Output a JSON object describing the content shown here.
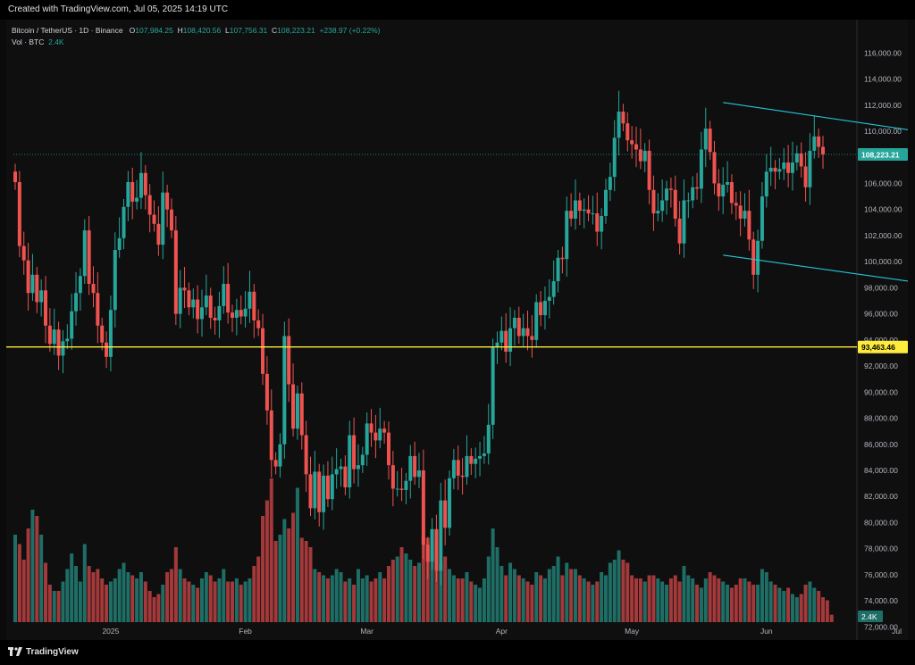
{
  "header": {
    "created_text": "Created with TradingView.com, Jul 05, 2025 14:19 UTC"
  },
  "legend": {
    "symbol": "Bitcoin / TetherUS · 1D · Binance",
    "open_key": "O",
    "open": "107,984.25",
    "high_key": "H",
    "high": "108,420.56",
    "low_key": "L",
    "low": "107,756.31",
    "close_key": "C",
    "close": "108,223.21",
    "change": "+238.97 (+0.22%)",
    "volume_label": "Vol · BTC",
    "volume_value": "2.4K"
  },
  "footer": {
    "brand": "TradingView"
  },
  "colors": {
    "up": "#26a69a",
    "down": "#ef5350",
    "vol_up": "#1f6e66",
    "vol_down": "#a3393a",
    "support": "#ffeb3b",
    "channel": "#26c6da",
    "price_line": "#26a69a"
  },
  "chart_data": {
    "type": "candlestick",
    "symbol": "BTCUSDT",
    "interval": "1D",
    "ylim": [
      71000,
      116500
    ],
    "y_ticks": [
      "116,000.00",
      "114,000.00",
      "112,000.00",
      "110,000.00",
      "108,000.00",
      "106,000.00",
      "104,000.00",
      "102,000.00",
      "100,000.00",
      "98,000.00",
      "96,000.00",
      "94,000.00",
      "92,000.00",
      "90,000.00",
      "88,000.00",
      "86,000.00",
      "84,000.00",
      "82,000.00",
      "80,000.00",
      "78,000.00",
      "76,000.00",
      "74,000.00",
      "72,000.00"
    ],
    "y_tick_values": [
      116000,
      114000,
      112000,
      110000,
      108000,
      106000,
      104000,
      102000,
      100000,
      98000,
      96000,
      94000,
      92000,
      90000,
      88000,
      86000,
      84000,
      82000,
      80000,
      78000,
      76000,
      74000,
      72000
    ],
    "x_ticks": [
      {
        "label": "2025",
        "day": "2025-01-01"
      },
      {
        "label": "Feb",
        "day": "2025-02-01"
      },
      {
        "label": "Mar",
        "day": "2025-03-01"
      },
      {
        "label": "Apr",
        "day": "2025-04-01"
      },
      {
        "label": "May",
        "day": "2025-05-01"
      },
      {
        "label": "Jun",
        "day": "2025-06-01"
      },
      {
        "label": "Jul",
        "day": "2025-07-01"
      }
    ],
    "first_day": "2024-12-10",
    "closes": [
      106100,
      101200,
      100100,
      97600,
      99000,
      96900,
      97800,
      95100,
      93700,
      94800,
      92800,
      93900,
      94100,
      96200,
      97600,
      98900,
      102400,
      98300,
      97600,
      95100,
      93800,
      92700,
      96300,
      100900,
      101800,
      104200,
      106100,
      104600,
      104900,
      106800,
      105100,
      103600,
      102900,
      101300,
      105300,
      104000,
      102400,
      96000,
      98000,
      97800,
      96500,
      97100,
      95600,
      96500,
      97400,
      95700,
      95500,
      96600,
      98300,
      96100,
      95700,
      96300,
      95800,
      96400,
      97700,
      95500,
      94900,
      91400,
      88600,
      84800,
      84300,
      86000,
      94300,
      90600,
      87200,
      89900,
      86700,
      83700,
      81100,
      83900,
      80800,
      83600,
      81800,
      83700,
      84100,
      84300,
      82700,
      86700,
      84100,
      84400,
      85200,
      87600,
      86900,
      86300,
      87200,
      86900,
      84400,
      82600,
      82600,
      82500,
      83200,
      85100,
      83500,
      84000,
      78300,
      77000,
      79500,
      76300,
      81700,
      79600,
      83400,
      84800,
      83600,
      83500,
      85100,
      84500,
      84900,
      85100,
      85300,
      87500,
      93500,
      93800,
      94700,
      93100,
      94900,
      95700,
      94300,
      94900,
      94300,
      94000,
      96900,
      95900,
      97000,
      97300,
      98500,
      100300,
      100200,
      103900,
      103300,
      104700,
      103900,
      104000,
      103700,
      103700,
      102300,
      103500,
      105500,
      106500,
      109500,
      111500,
      110600,
      109300,
      109000,
      108600,
      107700,
      108500,
      105500,
      103700,
      103900,
      104700,
      105600,
      105500,
      103300,
      101400,
      104700,
      104700,
      105700,
      105600,
      108600,
      110200,
      108400,
      106000,
      105000,
      105900,
      106100,
      104500,
      104300,
      103300,
      103900,
      101700,
      99000,
      101600,
      105000,
      106900,
      107200,
      106900,
      107100,
      107600,
      106800,
      107600,
      108300,
      107300,
      105700,
      108500,
      109600,
      108800,
      108223
    ],
    "volume_values": [
      28000,
      25000,
      20000,
      30000,
      36000,
      34000,
      28000,
      19000,
      12000,
      10000,
      10000,
      13000,
      17000,
      22000,
      18000,
      13000,
      25000,
      18000,
      16000,
      17000,
      14000,
      12000,
      13000,
      14000,
      17000,
      19000,
      16000,
      15000,
      14000,
      16000,
      13000,
      10000,
      8000,
      9000,
      12000,
      16000,
      17000,
      24000,
      17000,
      14000,
      13000,
      12000,
      11000,
      14000,
      16000,
      15000,
      13000,
      14000,
      17000,
      13000,
      13000,
      14000,
      12000,
      13000,
      14000,
      18000,
      21000,
      34000,
      39000,
      46000,
      26000,
      28000,
      33000,
      30000,
      35000,
      43000,
      27000,
      26000,
      24000,
      17000,
      16000,
      15000,
      14000,
      15000,
      17000,
      16000,
      13000,
      14000,
      12000,
      17000,
      14000,
      15000,
      13000,
      14000,
      16000,
      14000,
      18000,
      20000,
      21000,
      24000,
      22000,
      20000,
      18000,
      19000,
      27000,
      27000,
      23000,
      26000,
      19000,
      21000,
      17000,
      15000,
      14000,
      14000,
      16000,
      13000,
      12000,
      11000,
      14000,
      21000,
      30000,
      24000,
      18000,
      15000,
      19000,
      17000,
      15000,
      14000,
      13000,
      12000,
      16000,
      15000,
      14000,
      17000,
      18000,
      21000,
      15000,
      19000,
      17000,
      17000,
      15000,
      14000,
      13000,
      12000,
      13000,
      16000,
      15000,
      19000,
      20000,
      23000,
      20000,
      19000,
      15000,
      14000,
      14000,
      13000,
      15000,
      15000,
      14000,
      13000,
      12000,
      14000,
      15000,
      13000,
      18000,
      15000,
      14000,
      12000,
      11000,
      14000,
      16000,
      15000,
      14000,
      13000,
      12000,
      11000,
      12000,
      14000,
      14000,
      13000,
      12000,
      12000,
      17000,
      16000,
      13000,
      12000,
      11000,
      10000,
      11000,
      9000,
      8000,
      9000,
      12000,
      13000,
      11000,
      10000,
      8000,
      7000,
      2400
    ],
    "current_price_label": "108,223.21",
    "current_price": 108223.21,
    "support_level_label": "93,463.46",
    "support_level": 93463.46,
    "volume_axis_label": "2.4K",
    "channel_upper": [
      {
        "day": "2025-05-22",
        "price": 112200
      },
      {
        "day": "2025-07-08",
        "price": 109900
      }
    ],
    "channel_lower": [
      {
        "day": "2025-05-22",
        "price": 100500
      },
      {
        "day": "2025-07-08",
        "price": 98300
      }
    ],
    "grid": false
  }
}
